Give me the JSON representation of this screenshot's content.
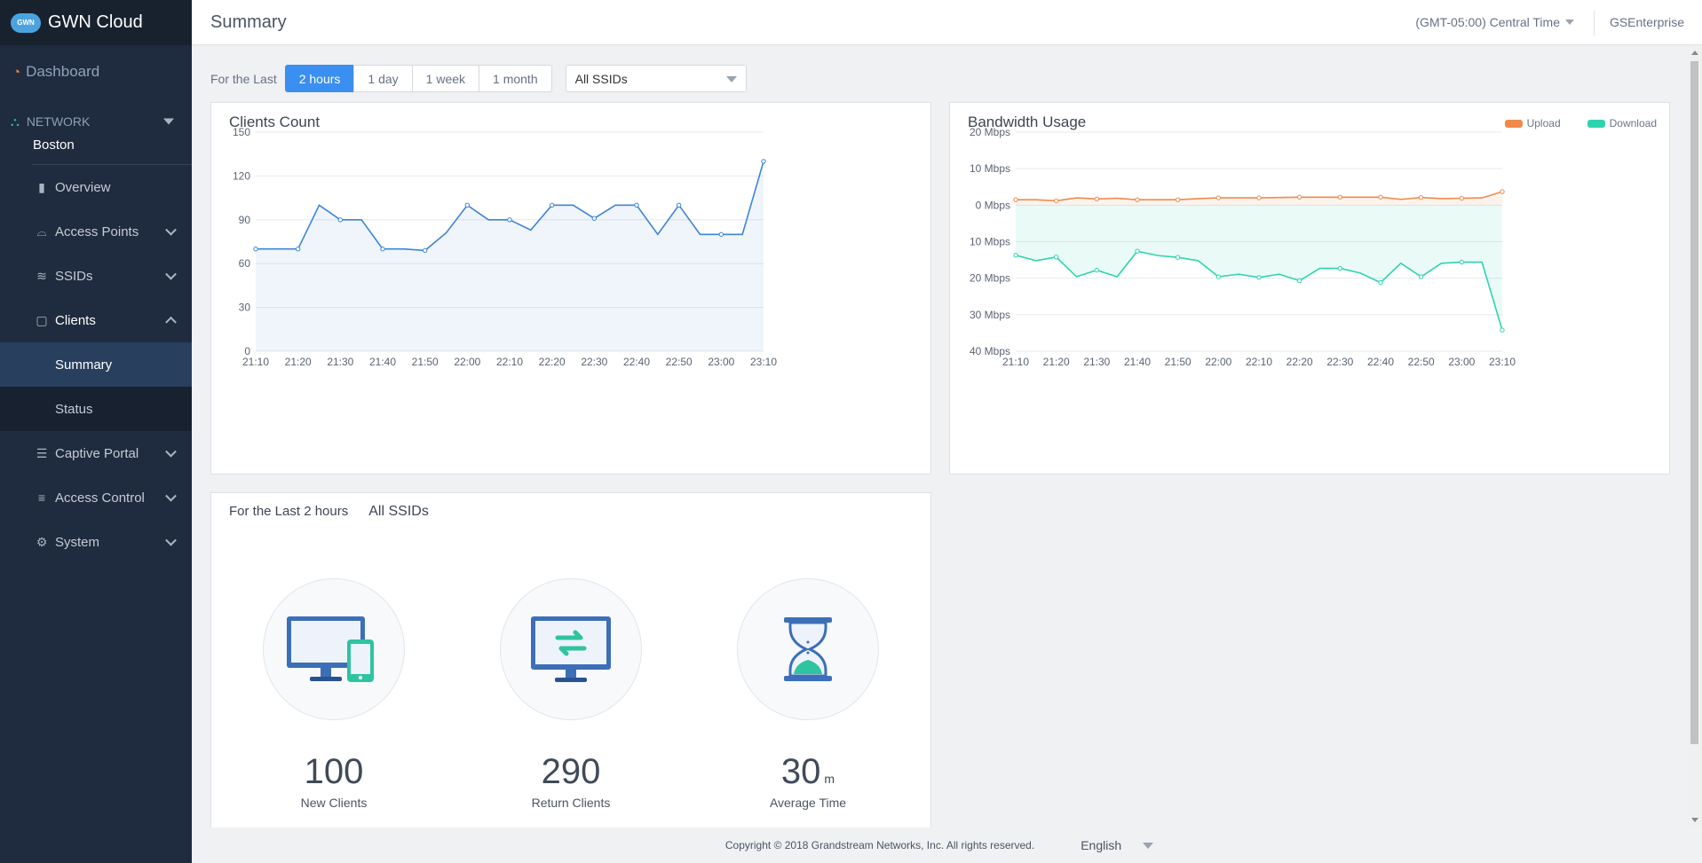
{
  "app": {
    "brand_logo": "GWN",
    "brand_name": "GWN Cloud"
  },
  "sidebar": {
    "dashboard": "Dashboard",
    "network_label": "NETWORK",
    "network_name": "Boston",
    "items": [
      {
        "label": "Overview",
        "icon": "bar-chart-icon"
      },
      {
        "label": "Access Points",
        "icon": "access-point-icon"
      },
      {
        "label": "SSIDs",
        "icon": "wifi-icon"
      },
      {
        "label": "Clients",
        "icon": "clients-icon"
      }
    ],
    "clients_sub": [
      {
        "label": "Summary"
      },
      {
        "label": "Status"
      }
    ],
    "lower_items": [
      {
        "label": "Captive Portal",
        "icon": "list-icon"
      },
      {
        "label": "Access Control",
        "icon": "sliders-icon"
      },
      {
        "label": "System",
        "icon": "gear-icon"
      }
    ]
  },
  "header": {
    "title": "Summary",
    "timezone": "(GMT-05:00) Central Time",
    "user": "GSEnterprise"
  },
  "filters": {
    "for_the_last": "For the Last",
    "ranges": [
      "2 hours",
      "1 day",
      "1 week",
      "1 month"
    ],
    "active_range": "2 hours",
    "ssid_select": "All SSIDs"
  },
  "clients_card": {
    "title": "Clients Count"
  },
  "bandwidth_card": {
    "title": "Bandwidth Usage",
    "legend_upload": "Upload",
    "legend_download": "Download"
  },
  "stats_card": {
    "period": "For the Last 2 hours",
    "ssid": "All SSIDs",
    "new_clients_value": "100",
    "new_clients_label": "New Clients",
    "return_clients_value": "290",
    "return_clients_label": "Return Clients",
    "avg_time_value": "30",
    "avg_time_unit": "m",
    "avg_time_label": "Average Time"
  },
  "footer": {
    "copyright": "Copyright © 2018 Grandstream Networks, Inc. All rights reserved.",
    "language": "English"
  },
  "colors": {
    "accent": "#3a8ff0",
    "upload": "#f08a4c",
    "download": "#2fd3b0",
    "clients_line": "#3c85d8"
  },
  "chart_data": [
    {
      "type": "line",
      "title": "Clients Count",
      "x": [
        "21:10",
        "21:15",
        "21:20",
        "21:25",
        "21:30",
        "21:35",
        "21:40",
        "21:45",
        "21:50",
        "21:55",
        "22:00",
        "22:05",
        "22:10",
        "22:15",
        "22:20",
        "22:25",
        "22:30",
        "22:35",
        "22:40",
        "22:45",
        "22:50",
        "22:55",
        "23:00",
        "23:05",
        "23:10"
      ],
      "x_ticks": [
        "21:10",
        "21:20",
        "21:30",
        "21:40",
        "21:50",
        "22:00",
        "22:10",
        "22:20",
        "22:30",
        "22:40",
        "22:50",
        "23:00",
        "23:10"
      ],
      "y_ticks": [
        0,
        30,
        60,
        90,
        120,
        150
      ],
      "ylim": [
        0,
        150
      ],
      "series": [
        {
          "values": [
            70,
            70,
            70,
            100,
            90,
            90,
            70,
            70,
            69,
            81,
            100,
            90,
            90,
            83,
            100,
            100,
            91,
            100,
            100,
            80,
            100,
            80,
            80,
            80,
            130
          ]
        }
      ],
      "grid": true
    },
    {
      "type": "line",
      "title": "Bandwidth Usage",
      "x": [
        "21:10",
        "21:15",
        "21:20",
        "21:25",
        "21:30",
        "21:35",
        "21:40",
        "21:45",
        "21:50",
        "21:55",
        "22:00",
        "22:05",
        "22:10",
        "22:15",
        "22:20",
        "22:25",
        "22:30",
        "22:35",
        "22:40",
        "22:45",
        "22:50",
        "22:55",
        "23:00",
        "23:05",
        "23:10"
      ],
      "x_ticks": [
        "21:10",
        "21:20",
        "21:30",
        "21:40",
        "21:50",
        "22:00",
        "22:10",
        "22:20",
        "22:30",
        "22:40",
        "22:50",
        "23:00",
        "23:10"
      ],
      "y_ticks": [
        "20 Mbps",
        "10 Mbps",
        "0 Mbps",
        "10 Mbps",
        "20 Mbps",
        "30 Mbps",
        "40 Mbps"
      ],
      "ylim": [
        -40,
        20
      ],
      "legend": "top-right",
      "series": [
        {
          "name": "Upload",
          "values": [
            1.5,
            1.5,
            1.2,
            2,
            1.7,
            1.9,
            1.5,
            1.5,
            1.5,
            1.8,
            2,
            2,
            2,
            2.1,
            2.2,
            2.2,
            2.2,
            2.2,
            2.2,
            1.6,
            2.1,
            1.8,
            1.9,
            2,
            3.7
          ]
        },
        {
          "name": "Download",
          "values": [
            -13.7,
            -15.2,
            -14.2,
            -19.6,
            -17.8,
            -19.6,
            -12.6,
            -13.8,
            -14.3,
            -15.2,
            -19.6,
            -18.9,
            -19.8,
            -18.9,
            -20.7,
            -17.3,
            -17.3,
            -18.6,
            -21.2,
            -15.9,
            -19.6,
            -15.9,
            -15.6,
            -15.6,
            -34.2
          ]
        }
      ],
      "grid": true
    }
  ]
}
